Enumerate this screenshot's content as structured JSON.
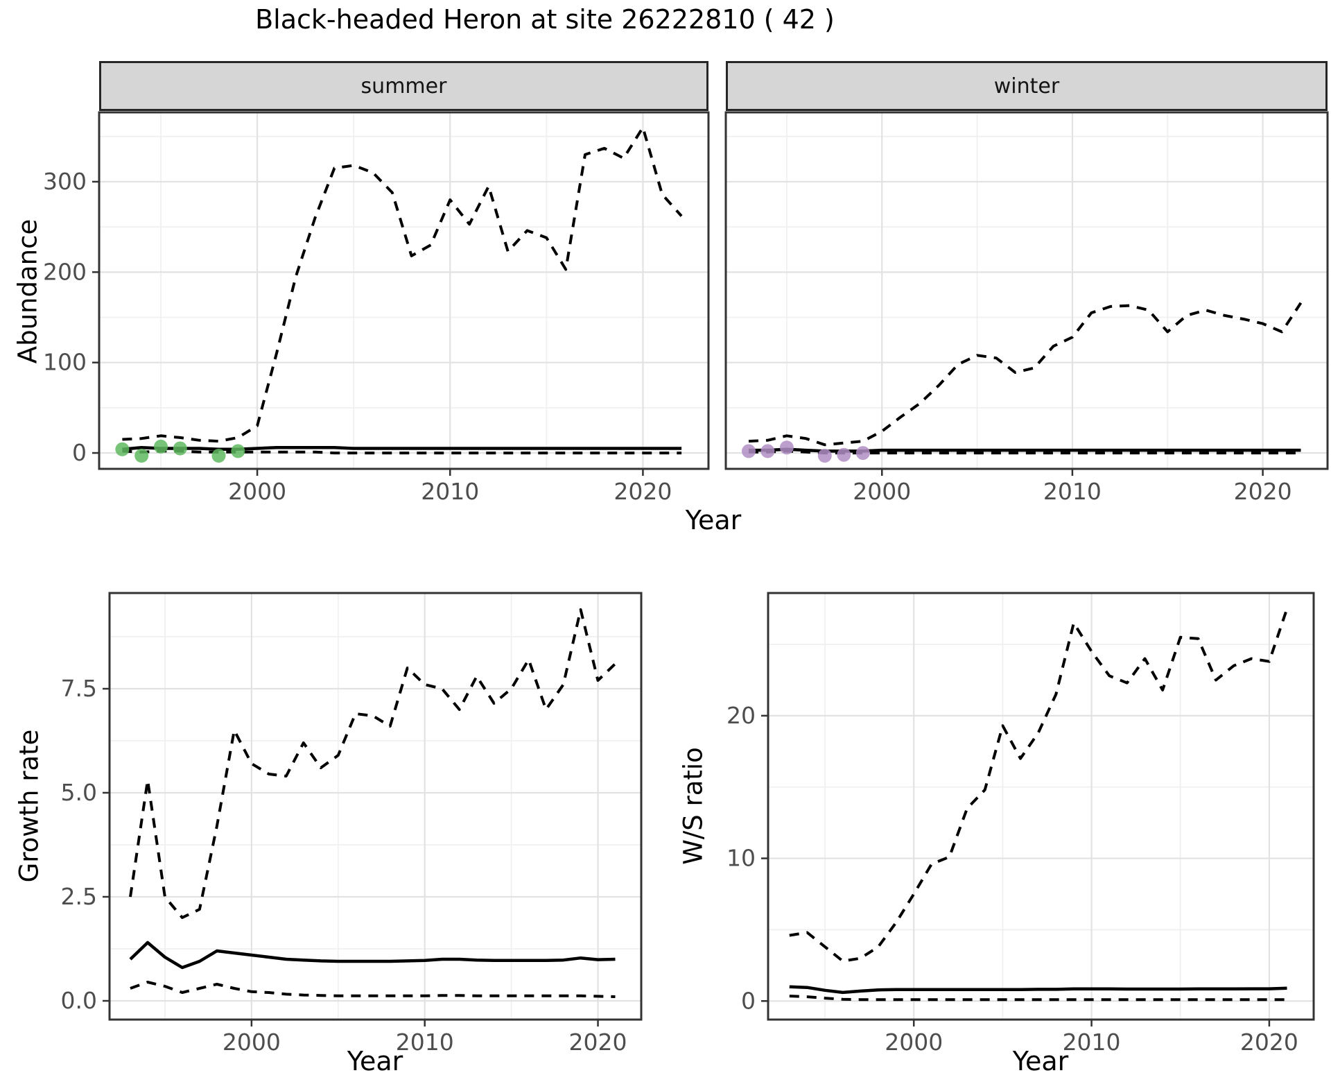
{
  "title": "Black-headed Heron at site 26222810 ( 42 )",
  "top": {
    "facets": [
      {
        "label": "summer"
      },
      {
        "label": "winter"
      }
    ],
    "ylabel": "Abundance",
    "xlabel": "Year"
  },
  "bottom_left": {
    "ylabel": "Growth rate",
    "xlabel": "Year"
  },
  "bottom_right": {
    "ylabel": "W/S ratio",
    "xlabel": "Year"
  },
  "colors": {
    "line": "#000000",
    "observed_summer": "#5FB95F",
    "observed_winter": "#B28EC4",
    "grid_major": "#E2E2E2",
    "grid_minor": "#F0F0F0",
    "panel_border": "#333333",
    "tick_text": "#4D4D4D",
    "strip_bg": "#D6D6D6"
  },
  "chart_data": [
    {
      "id": "summer",
      "type": "line",
      "facet": "summer",
      "title": "",
      "xlabel": "Year",
      "ylabel": "Abundance",
      "xlim": [
        1991.8,
        2023.4
      ],
      "ylim": [
        -17.6,
        376.7
      ],
      "x_ticks": {
        "values": [
          2000,
          2010,
          2020
        ],
        "labels": [
          "2000",
          "2010",
          "2020"
        ]
      },
      "x_minor": [
        1995,
        2005,
        2015
      ],
      "y_ticks": {
        "values": [
          0,
          100,
          200,
          300
        ],
        "labels": [
          "0",
          "100",
          "200",
          "300"
        ]
      },
      "y_minor": [
        50,
        150,
        250,
        350
      ],
      "show_y_labels": true,
      "legend": "none",
      "x": [
        1993,
        1994,
        1995,
        1996,
        1997,
        1998,
        1999,
        2000,
        2001,
        2002,
        2003,
        2004,
        2005,
        2006,
        2007,
        2008,
        2009,
        2010,
        2011,
        2012,
        2013,
        2014,
        2015,
        2016,
        2017,
        2018,
        2019,
        2020,
        2021,
        2022
      ],
      "series": [
        {
          "name": "upper-ci",
          "style": "dashed",
          "values": [
            15,
            16,
            19,
            17,
            14,
            13,
            17,
            30,
            110,
            195,
            260,
            315,
            318,
            310,
            288,
            218,
            230,
            280,
            253,
            295,
            223,
            246,
            238,
            203,
            330,
            337,
            326,
            360,
            286,
            262
          ]
        },
        {
          "name": "median",
          "style": "solid",
          "values": [
            4,
            6,
            5,
            5,
            5,
            4,
            4,
            5,
            6,
            6,
            6,
            6,
            5,
            5,
            5,
            5,
            5,
            5,
            5,
            5,
            5,
            5,
            5,
            5,
            5,
            5,
            5,
            5,
            5,
            5
          ]
        },
        {
          "name": "lower-ci",
          "style": "dashed",
          "values": [
            2,
            1,
            2,
            2,
            1,
            1,
            1,
            1,
            1,
            1,
            1,
            0,
            0,
            0,
            0,
            0,
            0,
            0,
            0,
            0,
            0,
            0,
            0,
            0,
            0,
            0,
            0,
            0,
            0,
            0
          ]
        }
      ],
      "points": {
        "name": "observed-counts-jittered",
        "color": "#5FB95F",
        "x": [
          1993,
          1994,
          1995,
          1996,
          1998,
          1999
        ],
        "values": [
          4,
          -3,
          7,
          5,
          -3,
          2
        ]
      }
    },
    {
      "id": "winter",
      "type": "line",
      "facet": "winter",
      "title": "",
      "xlabel": "Year",
      "ylabel": "Abundance",
      "xlim": [
        1991.8,
        2023.4
      ],
      "ylim": [
        -17.6,
        376.7
      ],
      "x_ticks": {
        "values": [
          2000,
          2010,
          2020
        ],
        "labels": [
          "2000",
          "2010",
          "2020"
        ]
      },
      "x_minor": [
        1995,
        2005,
        2015
      ],
      "y_ticks": {
        "values": [
          0,
          100,
          200,
          300
        ],
        "labels": [
          "0",
          "100",
          "200",
          "300"
        ]
      },
      "y_minor": [
        50,
        150,
        250,
        350
      ],
      "show_y_labels": false,
      "legend": "none",
      "x": [
        1993,
        1994,
        1995,
        1996,
        1997,
        1998,
        1999,
        2000,
        2001,
        2002,
        2003,
        2004,
        2005,
        2006,
        2007,
        2008,
        2009,
        2010,
        2011,
        2012,
        2013,
        2014,
        2015,
        2016,
        2017,
        2018,
        2019,
        2020,
        2021,
        2022
      ],
      "series": [
        {
          "name": "upper-ci",
          "style": "dashed",
          "values": [
            13,
            14,
            19,
            16,
            9,
            11,
            13,
            24,
            40,
            55,
            75,
            98,
            108,
            105,
            89,
            94,
            118,
            128,
            155,
            162,
            163,
            158,
            134,
            152,
            158,
            152,
            148,
            143,
            134,
            166
          ]
        },
        {
          "name": "median",
          "style": "solid",
          "values": [
            3,
            3,
            4,
            3,
            2,
            2,
            2,
            3,
            3,
            3,
            3,
            3,
            3,
            3,
            3,
            3,
            3,
            3,
            3,
            3,
            3,
            3,
            3,
            3,
            3,
            3,
            3,
            3,
            3,
            3
          ]
        },
        {
          "name": "lower-ci",
          "style": "dashed",
          "values": [
            1,
            1,
            2,
            1,
            0,
            0,
            0,
            0,
            0,
            0,
            0,
            0,
            0,
            0,
            0,
            0,
            0,
            0,
            0,
            0,
            0,
            0,
            0,
            0,
            0,
            0,
            0,
            0,
            0,
            0
          ]
        }
      ],
      "points": {
        "name": "observed-counts-jittered",
        "color": "#B28EC4",
        "x": [
          1993,
          1994,
          1995,
          1997,
          1998,
          1999
        ],
        "values": [
          2,
          2,
          6,
          -3,
          -2,
          0
        ]
      }
    },
    {
      "id": "growth",
      "type": "line",
      "title": "",
      "xlabel": "Year",
      "ylabel": "Growth rate",
      "xlim": [
        1991.8,
        2022.5
      ],
      "ylim": [
        -0.45,
        9.8
      ],
      "x_ticks": {
        "values": [
          2000,
          2010,
          2020
        ],
        "labels": [
          "2000",
          "2010",
          "2020"
        ]
      },
      "x_minor": [
        1995,
        2005,
        2015
      ],
      "y_ticks": {
        "values": [
          0,
          2.5,
          5,
          7.5
        ],
        "labels": [
          "0.0",
          "2.5",
          "5.0",
          "7.5"
        ]
      },
      "y_minor": [
        1.25,
        3.75,
        6.25,
        8.75
      ],
      "show_y_labels": true,
      "legend": "none",
      "x": [
        1993,
        1994,
        1995,
        1996,
        1997,
        1998,
        1999,
        2000,
        2001,
        2002,
        2003,
        2004,
        2005,
        2006,
        2007,
        2008,
        2009,
        2010,
        2011,
        2012,
        2013,
        2014,
        2015,
        2016,
        2017,
        2018,
        2019,
        2020,
        2021
      ],
      "series": [
        {
          "name": "upper-ci",
          "style": "dashed",
          "values": [
            2.5,
            5.3,
            2.5,
            2.0,
            2.2,
            4.2,
            6.5,
            5.7,
            5.45,
            5.4,
            6.2,
            5.6,
            5.9,
            6.9,
            6.85,
            6.6,
            8.0,
            7.6,
            7.5,
            7.0,
            7.8,
            7.15,
            7.5,
            8.2,
            7.0,
            7.6,
            9.4,
            7.7,
            8.1
          ]
        },
        {
          "name": "median",
          "style": "solid",
          "values": [
            1.0,
            1.4,
            1.05,
            0.8,
            0.95,
            1.2,
            1.15,
            1.1,
            1.05,
            1.0,
            0.98,
            0.96,
            0.95,
            0.95,
            0.95,
            0.95,
            0.96,
            0.97,
            1.0,
            1.0,
            0.98,
            0.97,
            0.97,
            0.97,
            0.97,
            0.98,
            1.03,
            0.99,
            1.0
          ]
        },
        {
          "name": "lower-ci",
          "style": "dashed",
          "values": [
            0.3,
            0.45,
            0.35,
            0.2,
            0.3,
            0.4,
            0.3,
            0.22,
            0.2,
            0.16,
            0.14,
            0.13,
            0.12,
            0.12,
            0.12,
            0.12,
            0.12,
            0.12,
            0.13,
            0.13,
            0.12,
            0.12,
            0.12,
            0.12,
            0.12,
            0.12,
            0.12,
            0.11,
            0.1
          ]
        }
      ]
    },
    {
      "id": "ws",
      "type": "line",
      "title": "",
      "xlabel": "Year",
      "ylabel": "W/S ratio",
      "xlim": [
        1991.8,
        2022.5
      ],
      "ylim": [
        -1.3,
        28.6
      ],
      "x_ticks": {
        "values": [
          2000,
          2010,
          2020
        ],
        "labels": [
          "2000",
          "2010",
          "2020"
        ]
      },
      "x_minor": [
        1995,
        2005,
        2015
      ],
      "y_ticks": {
        "values": [
          0,
          10,
          20
        ],
        "labels": [
          "0",
          "10",
          "20"
        ]
      },
      "y_minor": [
        5,
        15,
        25
      ],
      "show_y_labels": true,
      "legend": "none",
      "x": [
        1993,
        1994,
        1995,
        1996,
        1997,
        1998,
        1999,
        2000,
        2001,
        2002,
        2003,
        2004,
        2005,
        2006,
        2007,
        2008,
        2009,
        2010,
        2011,
        2012,
        2013,
        2014,
        2015,
        2016,
        2017,
        2018,
        2019,
        2020,
        2021
      ],
      "series": [
        {
          "name": "upper-ci",
          "style": "dashed",
          "values": [
            4.6,
            4.8,
            3.8,
            2.8,
            3.0,
            3.8,
            5.5,
            7.5,
            9.6,
            10.1,
            13.5,
            14.8,
            19.3,
            17.0,
            18.8,
            21.5,
            26.5,
            24.5,
            22.8,
            22.3,
            24.0,
            21.8,
            25.5,
            25.4,
            22.5,
            23.5,
            24.0,
            23.8,
            27.5
          ]
        },
        {
          "name": "median",
          "style": "solid",
          "values": [
            1.0,
            0.95,
            0.75,
            0.6,
            0.7,
            0.78,
            0.8,
            0.8,
            0.8,
            0.8,
            0.8,
            0.8,
            0.8,
            0.8,
            0.82,
            0.82,
            0.85,
            0.85,
            0.85,
            0.84,
            0.84,
            0.84,
            0.84,
            0.85,
            0.85,
            0.85,
            0.86,
            0.86,
            0.9
          ]
        },
        {
          "name": "lower-ci",
          "style": "dashed",
          "values": [
            0.35,
            0.3,
            0.2,
            0.12,
            0.1,
            0.1,
            0.1,
            0.1,
            0.1,
            0.1,
            0.1,
            0.1,
            0.1,
            0.1,
            0.1,
            0.1,
            0.1,
            0.1,
            0.1,
            0.1,
            0.1,
            0.1,
            0.1,
            0.1,
            0.1,
            0.1,
            0.1,
            0.1,
            0.1
          ]
        }
      ]
    }
  ]
}
